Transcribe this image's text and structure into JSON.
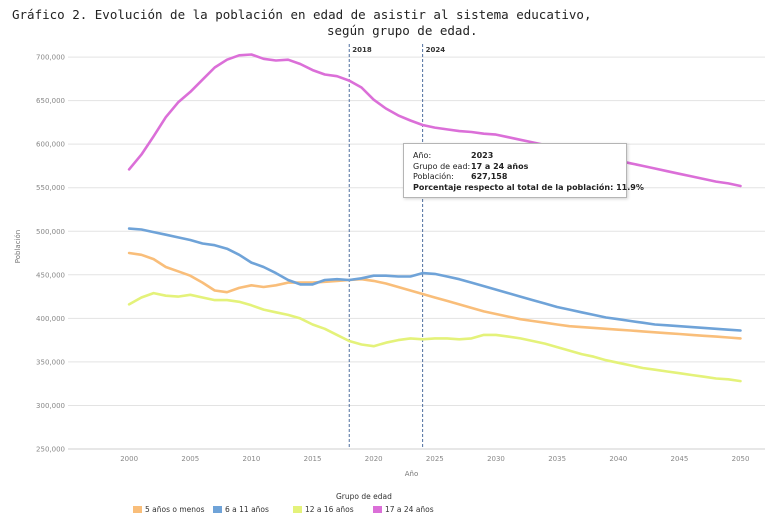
{
  "title": {
    "line1": "Gráfico 2. Evolución de la población en edad de asistir al sistema educativo,",
    "line2": "según grupo de edad."
  },
  "chart_data": {
    "type": "line",
    "xlabel": "Año",
    "ylabel": "Población",
    "xlim": [
      1995,
      2052
    ],
    "ylim": [
      250000,
      715000
    ],
    "x_ticks": [
      2000,
      2005,
      2010,
      2015,
      2020,
      2025,
      2030,
      2035,
      2040,
      2045,
      2050
    ],
    "y_ticks": [
      250000,
      300000,
      350000,
      400000,
      450000,
      500000,
      550000,
      600000,
      650000,
      700000
    ],
    "y_tick_labels": [
      "250,000",
      "300,000",
      "350,000",
      "400,000",
      "450,000",
      "500,000",
      "550,000",
      "600,000",
      "650,000",
      "700,000"
    ],
    "grid": "horizontal",
    "x": [
      2000,
      2001,
      2002,
      2003,
      2004,
      2005,
      2006,
      2007,
      2008,
      2009,
      2010,
      2011,
      2012,
      2013,
      2014,
      2015,
      2016,
      2017,
      2018,
      2019,
      2020,
      2021,
      2022,
      2023,
      2024,
      2025,
      2026,
      2027,
      2028,
      2029,
      2030,
      2031,
      2032,
      2033,
      2034,
      2035,
      2036,
      2037,
      2038,
      2039,
      2040,
      2041,
      2042,
      2043,
      2044,
      2045,
      2046,
      2047,
      2048,
      2049,
      2050
    ],
    "series": [
      {
        "name": "5 años o menos",
        "color": "#f9be7a",
        "values": [
          475000,
          473000,
          468000,
          459000,
          454000,
          449000,
          441000,
          432000,
          430000,
          435000,
          438000,
          436000,
          438000,
          441000,
          441000,
          441000,
          442000,
          443000,
          444000,
          445000,
          443000,
          440000,
          436000,
          432000,
          428000,
          424000,
          420000,
          416000,
          412000,
          408000,
          405000,
          402000,
          399000,
          397000,
          395000,
          393000,
          391000,
          390000,
          389000,
          388000,
          387000,
          386000,
          385000,
          384000,
          383000,
          382000,
          381000,
          380000,
          379000,
          378000,
          377000
        ]
      },
      {
        "name": "6 a 11 años",
        "color": "#6fa3d8",
        "values": [
          503000,
          502000,
          499000,
          496000,
          493000,
          490000,
          486000,
          484000,
          480000,
          473000,
          464000,
          459000,
          452000,
          444000,
          439000,
          439000,
          444000,
          445000,
          444000,
          446000,
          449000,
          449000,
          448000,
          448000,
          452000,
          451000,
          448000,
          445000,
          441000,
          437000,
          433000,
          429000,
          425000,
          421000,
          417000,
          413000,
          410000,
          407000,
          404000,
          401000,
          399000,
          397000,
          395000,
          393000,
          392000,
          391000,
          390000,
          389000,
          388000,
          387000,
          386000
        ]
      },
      {
        "name": "12 a 16 años",
        "color": "#e4f27a",
        "values": [
          416000,
          424000,
          429000,
          426000,
          425000,
          427000,
          424000,
          421000,
          421000,
          419000,
          415000,
          410000,
          407000,
          404000,
          400000,
          393000,
          388000,
          381000,
          374000,
          370000,
          368000,
          372000,
          375000,
          377000,
          376000,
          377000,
          377000,
          376000,
          377000,
          381000,
          381000,
          379000,
          377000,
          374000,
          371000,
          367000,
          363000,
          359000,
          356000,
          352000,
          349000,
          346000,
          343000,
          341000,
          339000,
          337000,
          335000,
          333000,
          331000,
          330000,
          328000
        ]
      },
      {
        "name": "17 a 24 años",
        "color": "#db6fd8",
        "values": [
          571000,
          588000,
          609000,
          631000,
          648000,
          660000,
          674000,
          688000,
          697000,
          702000,
          703000,
          698000,
          696000,
          697000,
          692000,
          685000,
          680000,
          678000,
          673000,
          665000,
          651000,
          641000,
          633000,
          627158,
          622000,
          619000,
          617000,
          615000,
          614000,
          612000,
          611000,
          608000,
          605000,
          602000,
          599000,
          596000,
          593000,
          590000,
          587000,
          584000,
          581000,
          578000,
          575000,
          572000,
          569000,
          566000,
          563000,
          560000,
          557000,
          555000,
          552000
        ]
      }
    ],
    "reference_lines": [
      {
        "x": 2018,
        "label": "2018"
      },
      {
        "x": 2024,
        "label": "2024"
      }
    ],
    "legend_title": "Grupo de edad",
    "legend_placement": "bottom"
  },
  "tooltip": {
    "rows": [
      {
        "key": "Año:",
        "value": "2023"
      },
      {
        "key": "Grupo de ead:",
        "value": "17 a 24 años"
      },
      {
        "key": "Población:",
        "value": "627,158"
      }
    ],
    "footer": "Porcentaje respecto al total de la población: 11.9%"
  }
}
